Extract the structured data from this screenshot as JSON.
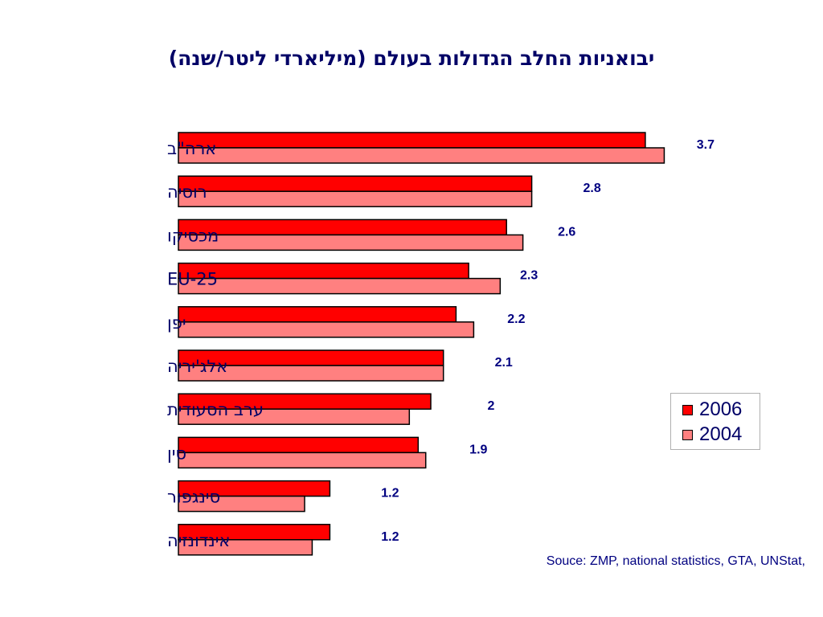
{
  "chart_data": {
    "type": "bar",
    "orientation": "horizontal",
    "title": "יבואניות החלב הגדולות בעולם (מיליארדי ליטר/שנה)",
    "categories": [
      "ארה\"ב",
      "רוסיה",
      "מכסיקו",
      "EU-25",
      "יפן",
      "אלג'יריה",
      "ערב הסעודית",
      "סין",
      "סינגפור",
      "אינדונזיה"
    ],
    "series": [
      {
        "name": "2006",
        "color": "#ff0000",
        "values": [
          3.7,
          2.8,
          2.6,
          2.3,
          2.2,
          2.1,
          2.0,
          1.9,
          1.2,
          1.2
        ]
      },
      {
        "name": "2004",
        "color": "#ff8080",
        "values": [
          3.85,
          2.8,
          2.73,
          2.55,
          2.34,
          2.1,
          1.83,
          1.96,
          1.0,
          1.06
        ]
      }
    ],
    "data_labels": [
      "3.7",
      "2.8",
      "2.6",
      "2.3",
      "2.2",
      "2.1",
      "2",
      "1.9",
      "1.2",
      "1.2"
    ],
    "xlim": [
      0,
      4.2
    ],
    "grid": false,
    "legend_position": "right"
  },
  "source": "Souce: ZMP,  national statistics, GTA, UNStat,",
  "colors": {
    "text": "#000066",
    "label": "#000080",
    "bar_2006": "#ff0000",
    "bar_2004": "#ff8080",
    "outline": "#000000"
  }
}
